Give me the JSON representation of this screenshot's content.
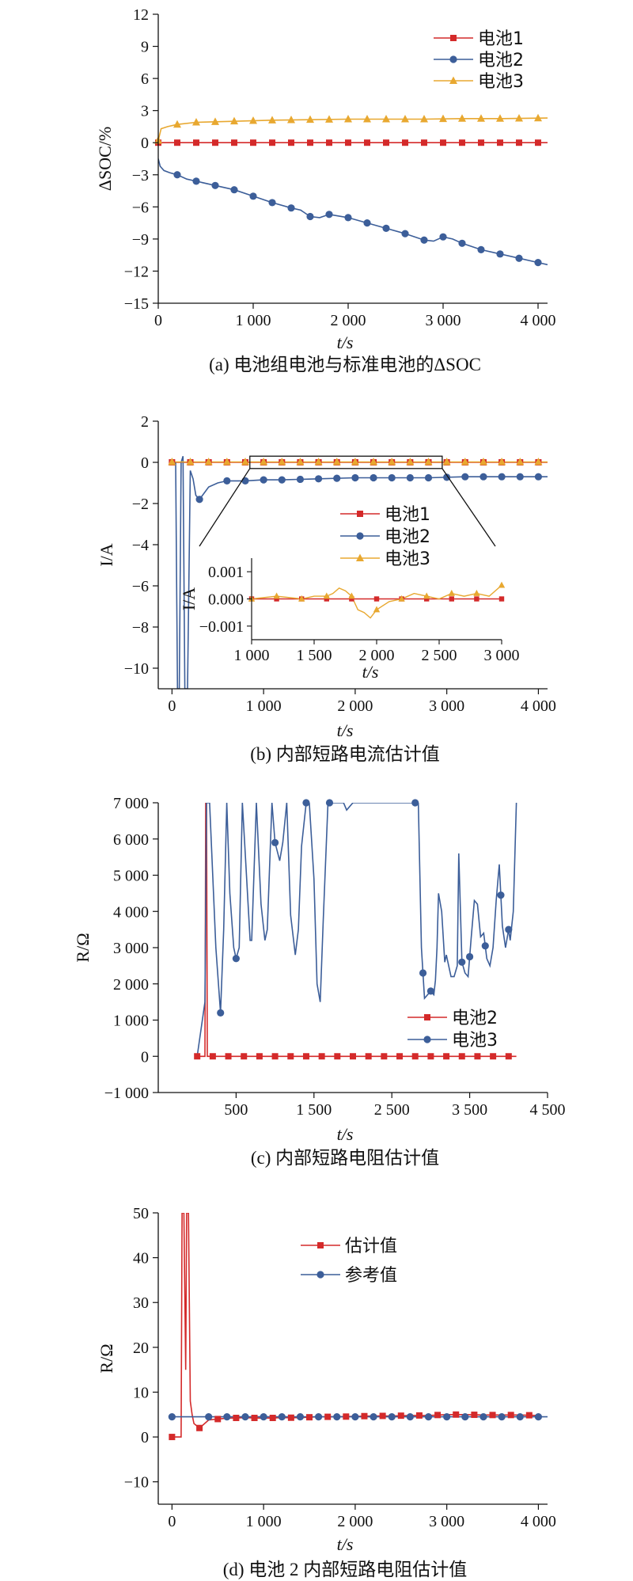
{
  "colors": {
    "red": "#d42a2a",
    "blue": "#3c5e99",
    "orange": "#e8a830",
    "axis": "#111111"
  },
  "chart_data": [
    {
      "type": "line",
      "caption": "(a) 电池组电池与标准电池的ΔSOC",
      "xlabel": "t/s",
      "ylabel": "ΔSOC/%",
      "xlim": [
        0,
        4100
      ],
      "ylim": [
        -15,
        12
      ],
      "xticks": [
        0,
        1000,
        2000,
        3000,
        4000
      ],
      "xtick_labels": [
        "0",
        "1 000",
        "2 000",
        "3 000",
        "4 000"
      ],
      "yticks": [
        -15,
        -12,
        -9,
        -6,
        -3,
        0,
        3,
        6,
        9,
        12
      ],
      "ytick_labels": [
        "−15",
        "−12",
        "−9",
        "−6",
        "−3",
        "0",
        "3",
        "6",
        "9",
        "12"
      ],
      "legend": "top-right",
      "series": [
        {
          "name": "电池1",
          "color": "red",
          "marker": "square",
          "x": [
            0,
            4100
          ],
          "y": [
            0,
            0
          ],
          "marker_x": [
            0,
            200,
            400,
            600,
            800,
            1000,
            1200,
            1400,
            1600,
            1800,
            2000,
            2200,
            2400,
            2600,
            2800,
            3000,
            3200,
            3400,
            3600,
            3800,
            4000
          ]
        },
        {
          "name": "电池2",
          "color": "blue",
          "marker": "circle",
          "x": [
            0,
            20,
            60,
            120,
            200,
            300,
            400,
            600,
            800,
            1000,
            1200,
            1400,
            1500,
            1600,
            1700,
            1800,
            2000,
            2200,
            2400,
            2600,
            2800,
            2900,
            3000,
            3100,
            3200,
            3400,
            3600,
            3800,
            4000,
            4100
          ],
          "y": [
            -1.5,
            -2.2,
            -2.6,
            -2.8,
            -3.0,
            -3.4,
            -3.6,
            -4.0,
            -4.4,
            -5.0,
            -5.6,
            -6.1,
            -6.3,
            -6.9,
            -7.0,
            -6.7,
            -7.0,
            -7.5,
            -8.0,
            -8.5,
            -9.1,
            -9.2,
            -8.8,
            -9.0,
            -9.4,
            -10.0,
            -10.4,
            -10.8,
            -11.2,
            -11.4
          ],
          "marker_x": [
            200,
            400,
            600,
            800,
            1000,
            1200,
            1400,
            1600,
            1800,
            2000,
            2200,
            2400,
            2600,
            2800,
            3000,
            3200,
            3400,
            3600,
            3800,
            4000
          ]
        },
        {
          "name": "电池3",
          "color": "orange",
          "marker": "triangle",
          "x": [
            0,
            30,
            100,
            200,
            400,
            800,
            1200,
            1600,
            2000,
            2400,
            2800,
            3200,
            3600,
            4100
          ],
          "y": [
            0.2,
            1.3,
            1.5,
            1.7,
            1.9,
            2.0,
            2.1,
            2.15,
            2.2,
            2.2,
            2.2,
            2.25,
            2.25,
            2.3
          ],
          "marker_x": [
            0,
            200,
            400,
            600,
            800,
            1000,
            1200,
            1400,
            1600,
            1800,
            2000,
            2200,
            2400,
            2600,
            2800,
            3000,
            3200,
            3400,
            3600,
            3800,
            4000
          ]
        }
      ]
    },
    {
      "type": "line",
      "caption": "(b) 内部短路电流估计值",
      "xlabel": "t/s",
      "ylabel": "I/A",
      "xlim": [
        -150,
        4100
      ],
      "ylim": [
        -11,
        2
      ],
      "xticks": [
        0,
        1000,
        2000,
        3000,
        4000
      ],
      "xtick_labels": [
        "0",
        "1 000",
        "2 000",
        "3 000",
        "4 000"
      ],
      "yticks": [
        -10,
        -8,
        -6,
        -4,
        -2,
        0,
        2
      ],
      "ytick_labels": [
        "−10",
        "−8",
        "−6",
        "−4",
        "−2",
        "0",
        "2"
      ],
      "legend": "center",
      "series": [
        {
          "name": "电池1",
          "color": "red",
          "marker": "square",
          "x": [
            0,
            4100
          ],
          "y": [
            0,
            0
          ],
          "marker_x": [
            0,
            200,
            400,
            600,
            800,
            1000,
            1200,
            1400,
            1600,
            1800,
            2000,
            2200,
            2400,
            2600,
            2800,
            3000,
            3200,
            3400,
            3600,
            3800,
            4000
          ]
        },
        {
          "name": "电池2",
          "color": "blue",
          "marker": "circle",
          "x": [
            0,
            40,
            60,
            80,
            100,
            120,
            140,
            170,
            200,
            230,
            260,
            300,
            350,
            400,
            500,
            600,
            800,
            1000,
            1200,
            1600,
            2000,
            2400,
            2800,
            3200,
            3600,
            4000,
            4100
          ],
          "y": [
            0,
            0,
            -11,
            -11,
            0,
            0.3,
            -11,
            -11,
            -0.4,
            -0.8,
            -1.6,
            -1.8,
            -1.5,
            -1.2,
            -1.0,
            -0.9,
            -0.9,
            -0.85,
            -0.85,
            -0.8,
            -0.75,
            -0.75,
            -0.75,
            -0.7,
            -0.7,
            -0.7,
            -0.7
          ],
          "marker_x": [
            300,
            600,
            800,
            1000,
            1200,
            1400,
            1600,
            1800,
            2000,
            2200,
            2400,
            2600,
            2800,
            3000,
            3200,
            3400,
            3600,
            3800,
            4000
          ]
        },
        {
          "name": "电池3",
          "color": "orange",
          "marker": "triangle",
          "x": [
            0,
            4100
          ],
          "y": [
            0.02,
            0.02
          ],
          "marker_x": [
            0,
            200,
            400,
            600,
            800,
            1000,
            1200,
            1400,
            1600,
            1800,
            2000,
            2200,
            2400,
            2600,
            2800,
            3000,
            3200,
            3400,
            3600,
            3800,
            4000
          ]
        }
      ],
      "inset": {
        "ylabel": "I/A",
        "xlabel": "t/s",
        "xlim": [
          1000,
          3000
        ],
        "ylim": [
          -0.0015,
          0.0015
        ],
        "xticks": [
          1000,
          1500,
          2000,
          2500,
          3000
        ],
        "xtick_labels": [
          "1 000",
          "1 500",
          "2 000",
          "2 500",
          "3 000"
        ],
        "yticks": [
          -0.001,
          0.0,
          0.001
        ],
        "ytick_labels": [
          "−0.001",
          "0.000",
          "0.001"
        ],
        "zoom_x": [
          850,
          2950
        ],
        "zoom_y": [
          -0.3,
          0.3
        ],
        "series": [
          {
            "name": "电池1",
            "color": "red",
            "x": [
              1000,
              3000
            ],
            "y": [
              0,
              0
            ],
            "marker_x": [
              1000,
              1200,
              1400,
              1600,
              1800,
              2000,
              2200,
              2400,
              2600,
              2800,
              3000
            ]
          },
          {
            "name": "电池3",
            "color": "orange",
            "x": [
              1000,
              1200,
              1400,
              1500,
              1600,
              1650,
              1700,
              1750,
              1800,
              1850,
              1900,
              1950,
              2000,
              2100,
              2200,
              2300,
              2400,
              2500,
              2600,
              2700,
              2800,
              2900,
              3000
            ],
            "y": [
              0.0,
              0.0001,
              0.0,
              0.0001,
              0.0001,
              0.0002,
              0.0004,
              0.0003,
              0.0001,
              -0.0004,
              -0.0005,
              -0.0007,
              -0.0004,
              -0.0001,
              0.0,
              0.0002,
              0.0001,
              0.0,
              0.0002,
              0.0001,
              0.0002,
              0.0001,
              0.0005
            ],
            "marker_x": [
              1000,
              1200,
              1400,
              1600,
              1800,
              2000,
              2200,
              2400,
              2600,
              2800,
              3000
            ]
          }
        ]
      }
    },
    {
      "type": "line",
      "caption": "(c) 内部短路电阻估计值",
      "xlabel": "t/s",
      "ylabel": "R/Ω",
      "xlim": [
        -500,
        4500
      ],
      "ylim": [
        -1000,
        7000
      ],
      "xticks": [
        500,
        1500,
        2500,
        3500,
        4500
      ],
      "xtick_labels": [
        "500",
        "1 500",
        "2 500",
        "3 500",
        "4 500"
      ],
      "yticks": [
        -1000,
        0,
        1000,
        2000,
        3000,
        4000,
        5000,
        6000,
        7000
      ],
      "ytick_labels": [
        "−1 000",
        "0",
        "1 000",
        "2 000",
        "3 000",
        "4 000",
        "5 000",
        "6 000",
        "7 000"
      ],
      "legend": "lower-right",
      "series": [
        {
          "name": "电池2",
          "color": "red",
          "marker": "square",
          "x": [
            0,
            100,
            110,
            120,
            130,
            4100
          ],
          "y": [
            0,
            0,
            7000,
            7000,
            0,
            0
          ],
          "marker_x": [
            0,
            200,
            400,
            600,
            800,
            1000,
            1200,
            1400,
            1600,
            1800,
            2000,
            2200,
            2400,
            2600,
            2800,
            3000,
            3200,
            3400,
            3600,
            3800,
            4000
          ]
        },
        {
          "name": "电池3",
          "color": "blue",
          "marker": "circle",
          "x": [
            0,
            100,
            120,
            160,
            240,
            300,
            340,
            380,
            420,
            470,
            500,
            540,
            580,
            620,
            680,
            700,
            760,
            820,
            870,
            900,
            960,
            1000,
            1060,
            1100,
            1150,
            1200,
            1260,
            1300,
            1340,
            1400,
            1440,
            1500,
            1540,
            1580,
            1620,
            1680,
            1700,
            1760,
            1800,
            1880,
            1920,
            2000,
            2040,
            2100,
            2160,
            2200,
            2240,
            2300,
            2400,
            2500,
            2560,
            2600,
            2700,
            2800,
            2840,
            2880,
            2920,
            3000,
            3040,
            3060,
            3080,
            3100,
            3140,
            3180,
            3200,
            3260,
            3300,
            3340,
            3360,
            3400,
            3440,
            3480,
            3520,
            3560,
            3600,
            3640,
            3680,
            3720,
            3760,
            3800,
            3840,
            3880,
            3920,
            3960,
            4000,
            4020,
            4060,
            4100
          ],
          "y": [
            0,
            1500,
            7000,
            7000,
            3000,
            1200,
            3500,
            7000,
            4500,
            3000,
            2700,
            3000,
            7000,
            5500,
            3200,
            3200,
            7000,
            4200,
            3200,
            3500,
            7000,
            5900,
            5400,
            5900,
            7000,
            3900,
            2800,
            3500,
            5800,
            7000,
            7000,
            4900,
            2000,
            1500,
            3800,
            7000,
            7000,
            7000,
            7000,
            7000,
            6800,
            7000,
            7000,
            7000,
            7000,
            7000,
            7000,
            7000,
            7000,
            7000,
            7000,
            7000,
            7000,
            7000,
            7000,
            3000,
            1600,
            1800,
            1700,
            2100,
            3000,
            4500,
            4000,
            2600,
            2800,
            2200,
            2200,
            2500,
            5600,
            2600,
            2300,
            2200,
            3300,
            4300,
            4200,
            3300,
            3400,
            2700,
            2500,
            3000,
            4300,
            5300,
            3600,
            3000,
            3500,
            3200,
            4000,
            7000
          ],
          "marker_x": [
            300,
            500,
            1000,
            1400,
            1700,
            2800,
            2900,
            3000,
            3400,
            3500,
            3700,
            3900,
            4000
          ]
        }
      ]
    },
    {
      "type": "line",
      "caption": "(d) 电池 2 内部短路电阻估计值",
      "xlabel": "t/s",
      "ylabel": "R/Ω",
      "xlim": [
        -150,
        4100
      ],
      "ylim": [
        -15,
        50
      ],
      "xticks": [
        0,
        1000,
        2000,
        3000,
        4000
      ],
      "xtick_labels": [
        "0",
        "1 000",
        "2 000",
        "3 000",
        "4 000"
      ],
      "yticks": [
        -10,
        0,
        10,
        20,
        30,
        40,
        50
      ],
      "ytick_labels": [
        "−10",
        "0",
        "10",
        "20",
        "30",
        "40",
        "50"
      ],
      "legend": "top-center",
      "series": [
        {
          "name": "估计值",
          "color": "red",
          "marker": "square",
          "x": [
            0,
            100,
            110,
            130,
            150,
            160,
            180,
            200,
            220,
            240,
            300,
            400,
            600,
            800,
            1000,
            1200,
            1400,
            1600,
            1800,
            2000,
            2200,
            2400,
            2600,
            2800,
            3000,
            3200,
            3400,
            3600,
            3800,
            4000
          ],
          "y": [
            0,
            0,
            50,
            50,
            15,
            50,
            50,
            8,
            5,
            3,
            2,
            3.8,
            4.2,
            4.3,
            4.2,
            4.3,
            4.3,
            4.5,
            4.5,
            4.6,
            4.7,
            4.7,
            4.8,
            4.8,
            5.0,
            5.0,
            4.9,
            4.9,
            4.9,
            4.8
          ],
          "marker_x": [
            0,
            300,
            500,
            700,
            900,
            1100,
            1300,
            1500,
            1700,
            1900,
            2100,
            2300,
            2500,
            2700,
            2900,
            3100,
            3300,
            3500,
            3700,
            3900
          ]
        },
        {
          "name": "参考值",
          "color": "blue",
          "marker": "circle",
          "x": [
            0,
            4100
          ],
          "y": [
            4.5,
            4.5
          ],
          "marker_x": [
            0,
            400,
            600,
            800,
            1000,
            1200,
            1400,
            1600,
            1800,
            2000,
            2200,
            2400,
            2600,
            2800,
            3000,
            3200,
            3400,
            3600,
            3800,
            4000
          ]
        }
      ]
    }
  ]
}
